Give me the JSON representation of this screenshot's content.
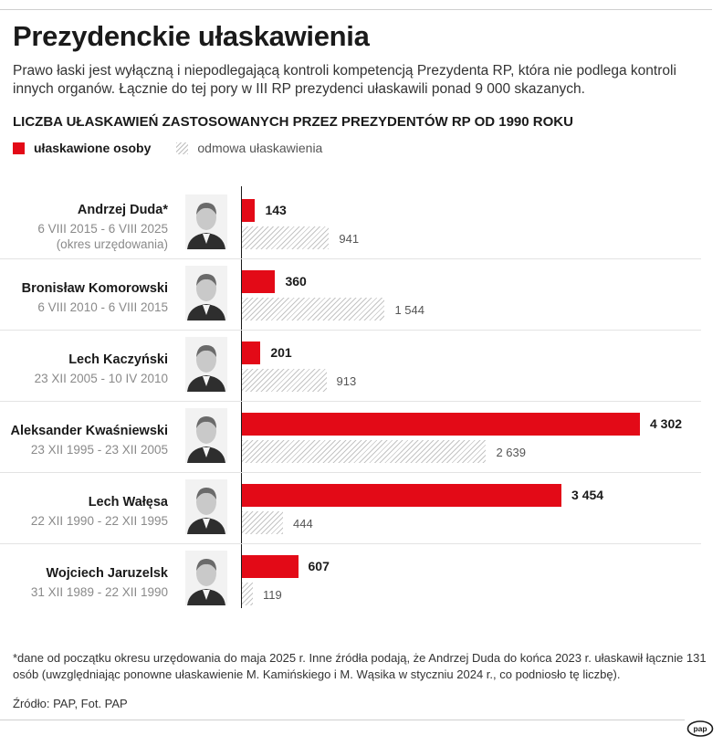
{
  "header": {
    "title": "Prezydenckie ułaskawienia",
    "lead": "Prawo łaski jest wyłączną i niepodlegającą kontroli kompetencją Prezydenta RP, która nie podlega kontroli innych organów. Łącznie do tej pory w III RP prezydenci ułaskawili ponad 9 000 skazanych."
  },
  "chart_data": {
    "type": "bar",
    "orientation": "horizontal",
    "title": "LICZBA UŁASKAWIEŃ ZASTOSOWANYCH PRZEZ PREZYDENTÓW RP OD 1990 ROKU",
    "legend": [
      "ułaskawione osoby",
      "odmowa ułaskawienia"
    ],
    "legend_position": "top-left",
    "xlim": [
      0,
      4302
    ],
    "categories": [
      {
        "name": "Andrzej Duda*",
        "term": [
          "6 VIII 2015 - 6 VIII 2025",
          "(okres urzędowania)"
        ]
      },
      {
        "name": "Bronisław Komorowski",
        "term": [
          "6 VIII 2010 - 6 VIII 2015"
        ]
      },
      {
        "name": "Lech Kaczyński",
        "term": [
          "23 XII 2005 - 10 IV 2010"
        ]
      },
      {
        "name": "Aleksander Kwaśniewski",
        "term": [
          "23 XII 1995 - 23 XII 2005"
        ]
      },
      {
        "name": "Lech Wałęsa",
        "term": [
          "22 XII 1990 - 22 XII 1995"
        ]
      },
      {
        "name": "Wojciech Jaruzelsk",
        "term": [
          "31 XII 1989 - 22 XII 1990"
        ]
      }
    ],
    "series": [
      {
        "name": "ułaskawione osoby",
        "color": "#e30a17",
        "values": [
          143,
          360,
          201,
          4302,
          3454,
          607
        ],
        "labels": [
          "143",
          "360",
          "201",
          "4 302",
          "3 454",
          "607"
        ]
      },
      {
        "name": "odmowa ułaskawienia",
        "color": "#c4c4c4",
        "values": [
          941,
          1544,
          913,
          2639,
          444,
          119
        ],
        "labels": [
          "941",
          "1 544",
          "913",
          "2 639",
          "444",
          "119"
        ]
      }
    ]
  },
  "footer": {
    "footnote": "*dane od początku okresu urzędowania do maja 2025 r. Inne źródła podają, że Andrzej Duda do końca 2023 r. ułaskawił łącznie 131 osób (uwzględniając ponowne ułaskawienie M. Kamińskiego i M. Wąsika w styczniu 2024 r., co podniosło tę liczbę).",
    "source": "Źródło: PAP, Fot. PAP",
    "logo": "pap"
  }
}
